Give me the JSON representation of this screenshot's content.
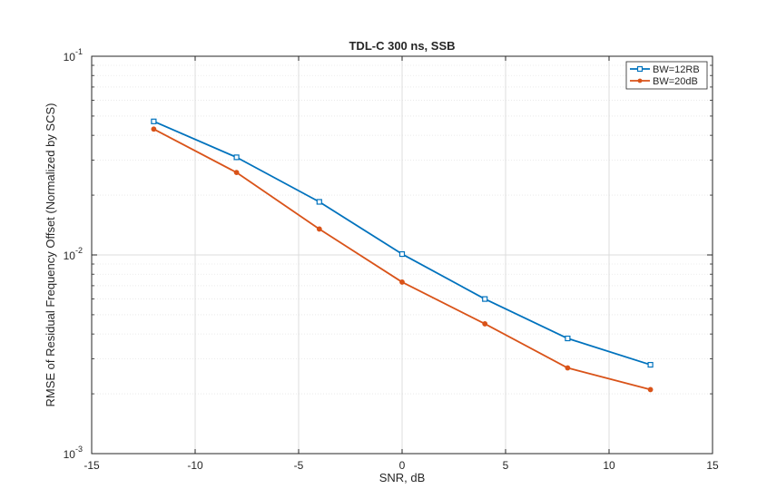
{
  "chart_data": {
    "type": "line",
    "title": "TDL-C 300 ns, SSB",
    "xlabel": "SNR, dB",
    "ylabel": "RMSE of Residual Frequency Offset  (Normalized by SCS)",
    "x_scale": "linear",
    "y_scale": "log",
    "xlim": [
      -15,
      15
    ],
    "ylim": [
      0.001,
      0.1
    ],
    "x_ticks": [
      "-15",
      "-10",
      "-5",
      "0",
      "5",
      "10",
      "15"
    ],
    "y_ticks": [
      {
        "base": "10",
        "exp": "-3",
        "value": 0.001
      },
      {
        "base": "10",
        "exp": "-2",
        "value": 0.01
      },
      {
        "base": "10",
        "exp": "-1",
        "value": 0.1
      }
    ],
    "grid": true,
    "minor_grid": true,
    "legend_position": "top-right",
    "x": [
      -12,
      -8,
      -4,
      0,
      4,
      8,
      12
    ],
    "series": [
      {
        "name": "BW=12RB",
        "color": "#0072BD",
        "marker": "square",
        "values": [
          0.047,
          0.031,
          0.0185,
          0.0101,
          0.006,
          0.0038,
          0.0028
        ]
      },
      {
        "name": "BW=20dB",
        "color": "#D95319",
        "marker": "circle",
        "values": [
          0.043,
          0.026,
          0.0135,
          0.0073,
          0.0045,
          0.0027,
          0.0021
        ]
      }
    ]
  }
}
